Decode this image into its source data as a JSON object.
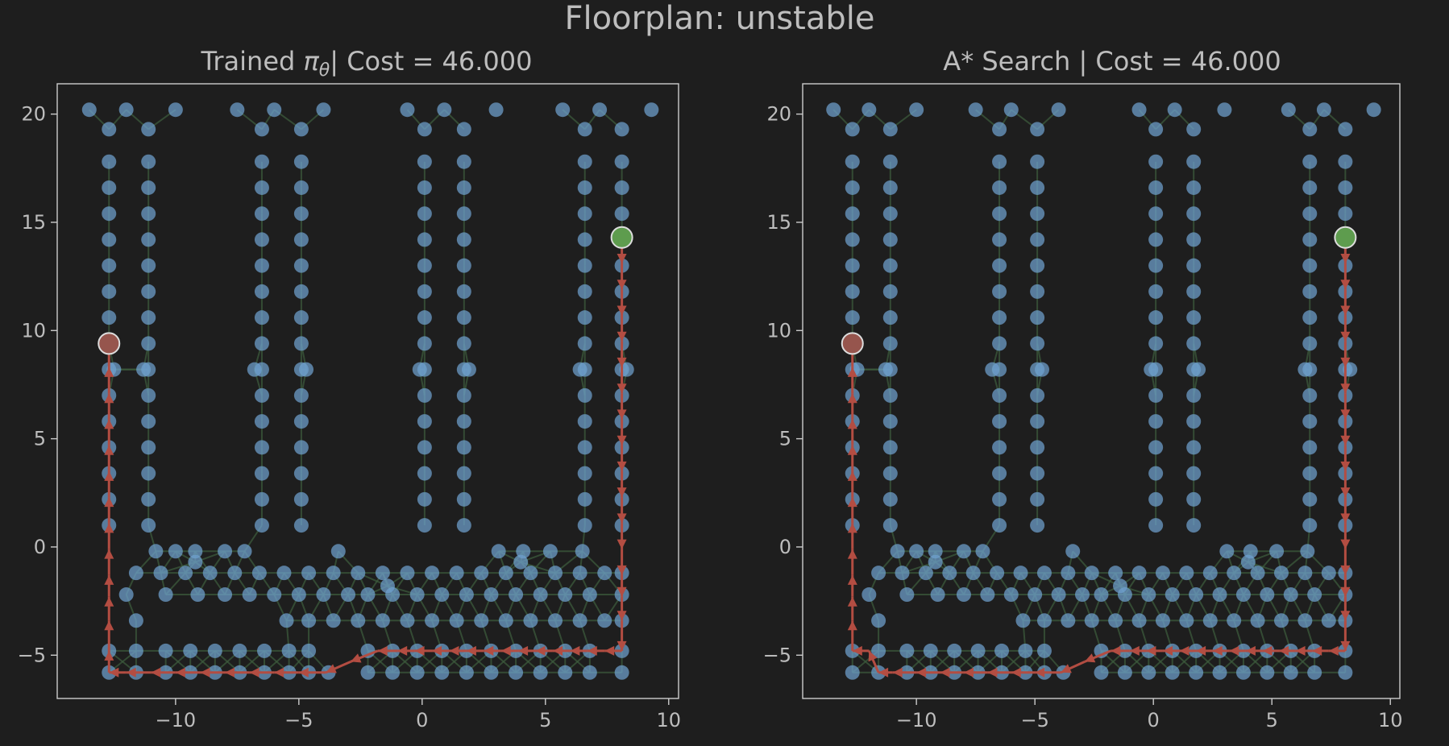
{
  "figure": {
    "title": "Floorplan: unstable"
  },
  "colors": {
    "background": "#1e1e1e",
    "text": "#bdbdbd",
    "axes": "#cccccc",
    "node": "#6fa1cf",
    "edge": "#3c5a3c",
    "path": "#b34d42",
    "start": "#5e9c4e",
    "goal": "#96554d"
  },
  "chart_data": [
    {
      "type": "scatter",
      "title_prefix": "Trained ",
      "title_symbol": "π",
      "title_subscript": "θ",
      "title_suffix": "| Cost = 46.000",
      "xlim": [
        -14.8,
        10.4
      ],
      "ylim": [
        -7.0,
        21.4
      ],
      "xticks": [
        -10,
        -5,
        0,
        5,
        10
      ],
      "yticks": [
        -5,
        0,
        5,
        10,
        15,
        20
      ],
      "xtick_labels": [
        "−10",
        "−5",
        "0",
        "5",
        "10"
      ],
      "ytick_labels": [
        "−5",
        "0",
        "5",
        "10",
        "15",
        "20"
      ],
      "start": [
        8.1,
        14.3
      ],
      "goal": [
        -12.7,
        9.4
      ],
      "path": [
        [
          8.1,
          14.3
        ],
        [
          8.1,
          13.1
        ],
        [
          8.1,
          11.9
        ],
        [
          8.1,
          10.7
        ],
        [
          8.1,
          9.5
        ],
        [
          8.1,
          8.3
        ],
        [
          8.1,
          7.1
        ],
        [
          8.1,
          5.9
        ],
        [
          8.1,
          4.7
        ],
        [
          8.1,
          3.5
        ],
        [
          8.1,
          2.3
        ],
        [
          8.1,
          1.1
        ],
        [
          8.1,
          -0.1
        ],
        [
          8.1,
          -1.3
        ],
        [
          8.1,
          -2.3
        ],
        [
          8.1,
          -3.4
        ],
        [
          8.1,
          -4.8
        ],
        [
          7.4,
          -4.8
        ],
        [
          6.7,
          -4.8
        ],
        [
          6.0,
          -4.8
        ],
        [
          5.3,
          -4.8
        ],
        [
          4.6,
          -4.8
        ],
        [
          3.9,
          -4.8
        ],
        [
          3.2,
          -4.8
        ],
        [
          2.5,
          -4.8
        ],
        [
          1.8,
          -4.8
        ],
        [
          1.1,
          -4.8
        ],
        [
          0.4,
          -4.8
        ],
        [
          -0.3,
          -4.8
        ],
        [
          -1.0,
          -4.8
        ],
        [
          -1.8,
          -4.8
        ],
        [
          -2.9,
          -5.3
        ],
        [
          -3.9,
          -5.8
        ],
        [
          -5.0,
          -5.8
        ],
        [
          -6.0,
          -5.8
        ],
        [
          -7.0,
          -5.8
        ],
        [
          -8.0,
          -5.8
        ],
        [
          -9.0,
          -5.8
        ],
        [
          -10.0,
          -5.8
        ],
        [
          -11.0,
          -5.8
        ],
        [
          -12.0,
          -5.8
        ],
        [
          -12.7,
          -5.8
        ],
        [
          -12.7,
          -4.8
        ],
        [
          -12.7,
          -3.4
        ],
        [
          -12.7,
          -2.3
        ],
        [
          -12.7,
          -1.3
        ],
        [
          -12.7,
          -0.1
        ],
        [
          -12.7,
          1.1
        ],
        [
          -12.7,
          2.3
        ],
        [
          -12.7,
          3.5
        ],
        [
          -12.7,
          4.7
        ],
        [
          -12.7,
          5.9
        ],
        [
          -12.7,
          7.1
        ],
        [
          -12.7,
          8.3
        ],
        [
          -12.7,
          9.4
        ]
      ]
    },
    {
      "type": "scatter",
      "title_prefix": "A* Search | Cost = 46.000",
      "title_symbol": "",
      "title_subscript": "",
      "title_suffix": "",
      "xlim": [
        -14.8,
        10.4
      ],
      "ylim": [
        -7.0,
        21.4
      ],
      "xticks": [
        -10,
        -5,
        0,
        5,
        10
      ],
      "yticks": [
        -5,
        0,
        5,
        10,
        15,
        20
      ],
      "xtick_labels": [
        "−10",
        "−5",
        "0",
        "5",
        "10"
      ],
      "ytick_labels": [
        "−5",
        "0",
        "5",
        "10",
        "15",
        "20"
      ],
      "start": [
        8.1,
        14.3
      ],
      "goal": [
        -12.7,
        9.4
      ],
      "path": [
        [
          8.1,
          14.3
        ],
        [
          8.1,
          13.1
        ],
        [
          8.1,
          11.9
        ],
        [
          8.1,
          10.7
        ],
        [
          8.1,
          9.5
        ],
        [
          8.1,
          8.3
        ],
        [
          8.1,
          7.1
        ],
        [
          8.1,
          5.9
        ],
        [
          8.1,
          4.7
        ],
        [
          8.1,
          3.5
        ],
        [
          8.1,
          2.3
        ],
        [
          8.1,
          1.1
        ],
        [
          8.1,
          -0.1
        ],
        [
          8.1,
          -1.3
        ],
        [
          8.1,
          -2.3
        ],
        [
          8.1,
          -3.4
        ],
        [
          8.1,
          -4.8
        ],
        [
          7.4,
          -4.8
        ],
        [
          6.7,
          -4.8
        ],
        [
          6.0,
          -4.8
        ],
        [
          5.3,
          -4.8
        ],
        [
          4.6,
          -4.8
        ],
        [
          3.9,
          -4.8
        ],
        [
          3.2,
          -4.8
        ],
        [
          2.5,
          -4.8
        ],
        [
          1.8,
          -4.8
        ],
        [
          1.1,
          -4.8
        ],
        [
          0.4,
          -4.8
        ],
        [
          -0.3,
          -4.8
        ],
        [
          -1.0,
          -4.8
        ],
        [
          -1.8,
          -4.8
        ],
        [
          -2.9,
          -5.3
        ],
        [
          -3.9,
          -5.8
        ],
        [
          -5.0,
          -5.8
        ],
        [
          -6.0,
          -5.8
        ],
        [
          -7.0,
          -5.8
        ],
        [
          -8.0,
          -5.8
        ],
        [
          -9.0,
          -5.8
        ],
        [
          -10.0,
          -5.8
        ],
        [
          -11.0,
          -5.8
        ],
        [
          -11.6,
          -5.8
        ],
        [
          -12.0,
          -4.8
        ],
        [
          -12.7,
          -4.8
        ],
        [
          -12.7,
          -3.4
        ],
        [
          -12.7,
          -2.3
        ],
        [
          -12.7,
          -1.3
        ],
        [
          -12.7,
          -0.1
        ],
        [
          -12.7,
          1.1
        ],
        [
          -12.7,
          2.3
        ],
        [
          -12.7,
          3.5
        ],
        [
          -12.7,
          4.7
        ],
        [
          -12.7,
          5.9
        ],
        [
          -12.7,
          7.1
        ],
        [
          -12.7,
          8.3
        ],
        [
          -12.7,
          9.4
        ]
      ]
    }
  ]
}
